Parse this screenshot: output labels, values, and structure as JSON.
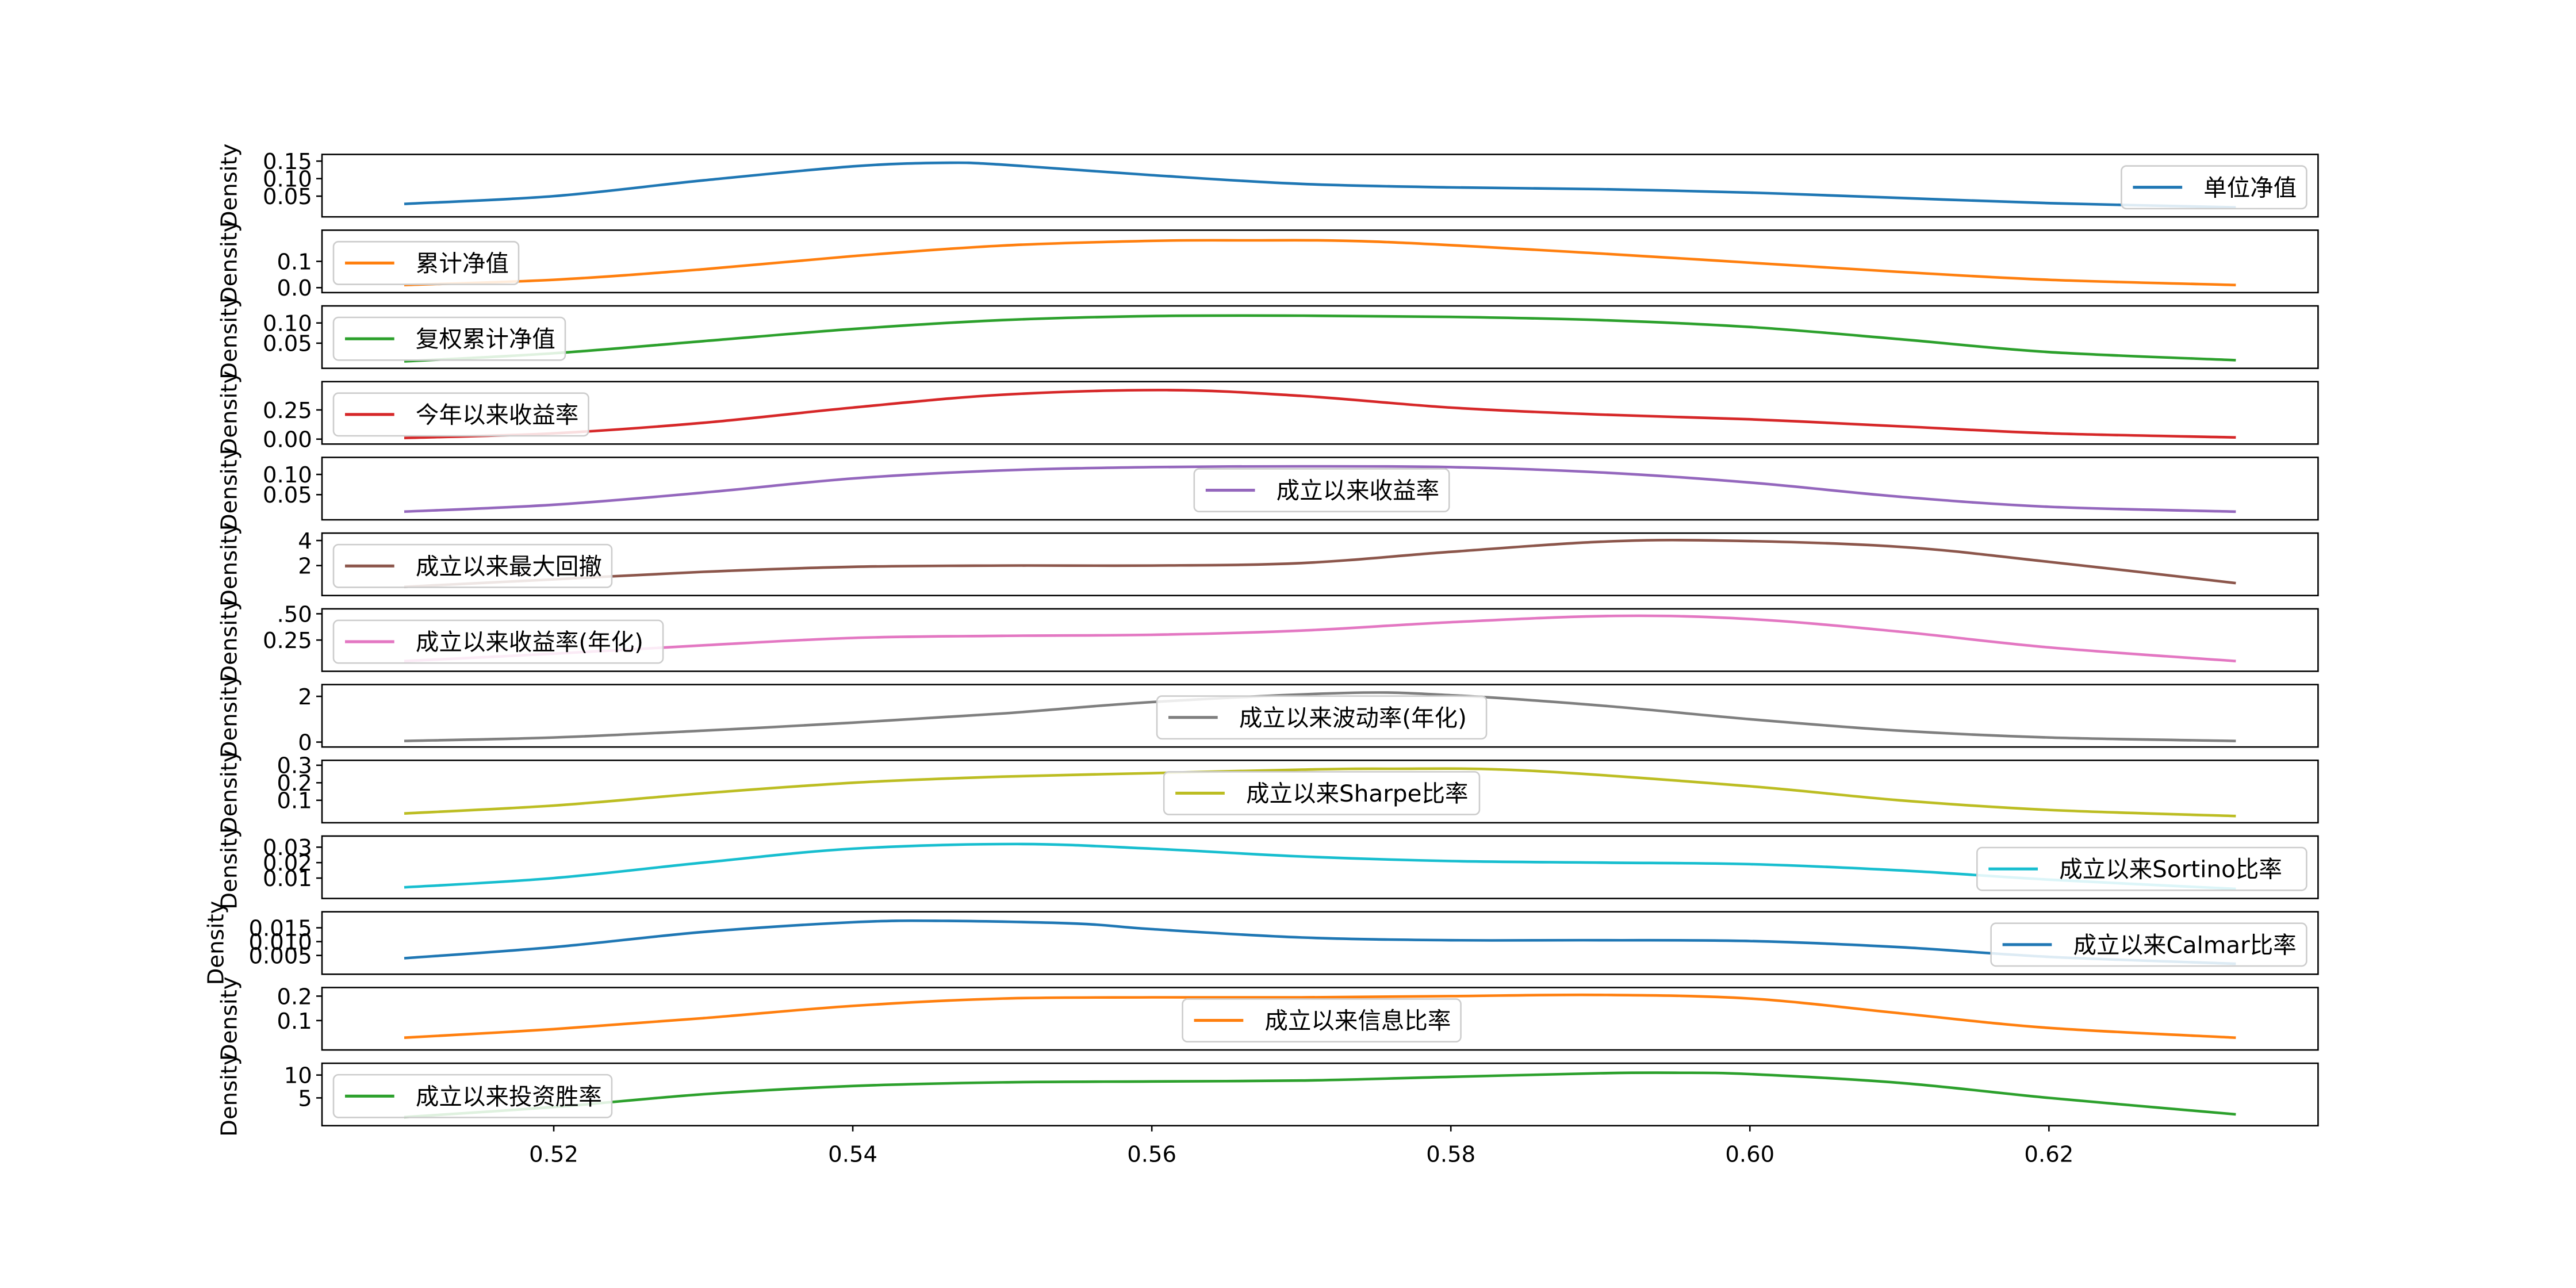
{
  "chart_data": {
    "type": "line",
    "description_kind": "kde-density-stack",
    "x_ticks": [
      0.52,
      0.54,
      0.56,
      0.58,
      0.6,
      0.62
    ],
    "x_tick_labels": [
      "0.52",
      "0.54",
      "0.56",
      "0.58",
      "0.60",
      "0.62"
    ],
    "xlim": [
      0.5045,
      0.638
    ],
    "data_range": [
      0.51,
      0.6325
    ],
    "ylabel": "Density",
    "grid": false,
    "series": [
      {
        "name": "单位净值",
        "color": "#1f77b4",
        "legend": "right",
        "ylim": [
          0.005,
          0.155
        ],
        "yticks": [
          0.05,
          0.1,
          0.15
        ],
        "ytick_labels": [
          "0.05",
          "0.10",
          "0.15"
        ],
        "x": [
          0.51,
          0.52,
          0.53,
          0.54,
          0.546,
          0.55,
          0.56,
          0.57,
          0.58,
          0.59,
          0.6,
          0.61,
          0.62,
          0.6325
        ],
        "y": [
          0.028,
          0.05,
          0.095,
          0.135,
          0.145,
          0.14,
          0.11,
          0.085,
          0.075,
          0.07,
          0.06,
          0.045,
          0.03,
          0.018
        ]
      },
      {
        "name": "累计净值",
        "color": "#ff7f0e",
        "legend": "left",
        "ylim": [
          0,
          0.2
        ],
        "yticks": [
          0.0,
          0.1
        ],
        "ytick_labels": [
          "0.0",
          "0.1"
        ],
        "x": [
          0.51,
          0.52,
          0.53,
          0.54,
          0.55,
          0.56,
          0.566,
          0.575,
          0.59,
          0.6,
          0.61,
          0.62,
          0.6325
        ],
        "y": [
          0.01,
          0.03,
          0.07,
          0.12,
          0.16,
          0.178,
          0.18,
          0.175,
          0.13,
          0.095,
          0.06,
          0.03,
          0.01
        ]
      },
      {
        "name": "复权累计净值",
        "color": "#2ca02c",
        "legend": "left",
        "ylim": [
          0,
          0.13
        ],
        "yticks": [
          0.05,
          0.1
        ],
        "ytick_labels": [
          "0.05",
          "0.10"
        ],
        "x": [
          0.51,
          0.52,
          0.53,
          0.54,
          0.55,
          0.56,
          0.57,
          0.58,
          0.59,
          0.6,
          0.61,
          0.62,
          0.6325
        ],
        "y": [
          0.005,
          0.025,
          0.055,
          0.085,
          0.107,
          0.117,
          0.118,
          0.115,
          0.107,
          0.09,
          0.06,
          0.028,
          0.008
        ]
      },
      {
        "name": "今年以来收益率",
        "color": "#d62728",
        "legend": "left",
        "ylim": [
          0,
          0.45
        ],
        "yticks": [
          0.0,
          0.25
        ],
        "ytick_labels": [
          "0.00",
          "0.25"
        ],
        "x": [
          0.51,
          0.52,
          0.53,
          0.54,
          0.55,
          0.561,
          0.57,
          0.58,
          0.59,
          0.6,
          0.61,
          0.62,
          0.6325
        ],
        "y": [
          0.01,
          0.05,
          0.14,
          0.27,
          0.38,
          0.42,
          0.37,
          0.27,
          0.21,
          0.17,
          0.11,
          0.05,
          0.015
        ]
      },
      {
        "name": "成立以来收益率",
        "color": "#9467bd",
        "legend": "center",
        "ylim": [
          0,
          0.13
        ],
        "yticks": [
          0.05,
          0.1
        ],
        "ytick_labels": [
          "0.05",
          "0.10"
        ],
        "x": [
          0.51,
          0.52,
          0.53,
          0.54,
          0.55,
          0.56,
          0.57,
          0.58,
          0.59,
          0.6,
          0.61,
          0.62,
          0.6325
        ],
        "y": [
          0.008,
          0.025,
          0.055,
          0.09,
          0.11,
          0.118,
          0.12,
          0.118,
          0.105,
          0.08,
          0.045,
          0.02,
          0.008
        ]
      },
      {
        "name": "成立以来最大回撤",
        "color": "#8c564b",
        "legend": "left",
        "ylim": [
          0,
          4.2
        ],
        "yticks": [
          2,
          4
        ],
        "ytick_labels": [
          "2",
          "4"
        ],
        "x": [
          0.51,
          0.52,
          0.53,
          0.54,
          0.55,
          0.56,
          0.57,
          0.58,
          0.59,
          0.598,
          0.61,
          0.62,
          0.6325
        ],
        "y": [
          0.3,
          0.9,
          1.5,
          1.9,
          2.0,
          2.0,
          2.2,
          3.1,
          3.9,
          4.0,
          3.5,
          2.3,
          0.6
        ]
      },
      {
        "name": "成立以来收益率(年化)",
        "color": "#e377c2",
        "legend": "left",
        "ylim": [
          0,
          0.5
        ],
        "yticks": [
          0.25,
          0.5
        ],
        "ytick_labels": [
          "0.25",
          ".50"
        ],
        "x": [
          0.51,
          0.52,
          0.53,
          0.54,
          0.55,
          0.56,
          0.57,
          0.58,
          0.591,
          0.6,
          0.61,
          0.62,
          0.6325
        ],
        "y": [
          0.05,
          0.12,
          0.2,
          0.27,
          0.29,
          0.3,
          0.34,
          0.42,
          0.48,
          0.45,
          0.33,
          0.18,
          0.05
        ]
      },
      {
        "name": "成立以来波动率(年化)",
        "color": "#7f7f7f",
        "legend": "center",
        "ylim": [
          0,
          2.3
        ],
        "yticks": [
          0,
          2
        ],
        "ytick_labels": [
          "0",
          "2"
        ],
        "x": [
          0.51,
          0.52,
          0.53,
          0.54,
          0.55,
          0.56,
          0.573,
          0.58,
          0.59,
          0.6,
          0.61,
          0.62,
          0.6325
        ],
        "y": [
          0.05,
          0.2,
          0.5,
          0.85,
          1.25,
          1.75,
          2.15,
          2.05,
          1.6,
          1.0,
          0.5,
          0.2,
          0.05
        ]
      },
      {
        "name": "成立以来Sharpe比率",
        "color": "#bcbd22",
        "legend": "center",
        "ylim": [
          0,
          0.3
        ],
        "yticks": [
          0.1,
          0.2,
          0.3
        ],
        "ytick_labels": [
          "0.1",
          "0.2",
          "0.3"
        ],
        "x": [
          0.51,
          0.52,
          0.53,
          0.54,
          0.55,
          0.56,
          0.57,
          0.576,
          0.585,
          0.6,
          0.61,
          0.62,
          0.6325
        ],
        "y": [
          0.025,
          0.07,
          0.14,
          0.2,
          0.235,
          0.255,
          0.275,
          0.28,
          0.27,
          0.18,
          0.1,
          0.045,
          0.01
        ]
      },
      {
        "name": "成立以来Sortino比率",
        "color": "#17becf",
        "legend": "right",
        "ylim": [
          0,
          0.034
        ],
        "yticks": [
          0.01,
          0.02,
          0.03
        ],
        "ytick_labels": [
          "0.01",
          "0.02",
          "0.03"
        ],
        "x": [
          0.51,
          0.52,
          0.53,
          0.54,
          0.551,
          0.56,
          0.57,
          0.58,
          0.59,
          0.6,
          0.61,
          0.62,
          0.6325
        ],
        "y": [
          0.004,
          0.01,
          0.02,
          0.029,
          0.032,
          0.029,
          0.024,
          0.021,
          0.02,
          0.019,
          0.015,
          0.009,
          0.003
        ]
      },
      {
        "name": "成立以来Calmar比率",
        "color": "#1f77b4",
        "legend": "right",
        "ylim": [
          0,
          0.019
        ],
        "yticks": [
          0.005,
          0.01,
          0.015
        ],
        "ytick_labels": [
          "0.005",
          "0.010",
          "0.015"
        ],
        "x": [
          0.51,
          0.52,
          0.53,
          0.54,
          0.546,
          0.555,
          0.56,
          0.57,
          0.58,
          0.59,
          0.6,
          0.61,
          0.62,
          0.6325
        ],
        "y": [
          0.004,
          0.008,
          0.0135,
          0.017,
          0.0175,
          0.0165,
          0.0145,
          0.0115,
          0.0105,
          0.0105,
          0.0102,
          0.008,
          0.0045,
          0.002
        ]
      },
      {
        "name": "成立以来信息比率",
        "color": "#ff7f0e",
        "legend": "center",
        "ylim": [
          0,
          0.215
        ],
        "yticks": [
          0.1,
          0.2
        ],
        "ytick_labels": [
          "0.1",
          "0.2"
        ],
        "x": [
          0.51,
          0.52,
          0.53,
          0.54,
          0.55,
          0.56,
          0.57,
          0.58,
          0.59,
          0.6,
          0.61,
          0.62,
          0.6325
        ],
        "y": [
          0.03,
          0.065,
          0.11,
          0.16,
          0.19,
          0.195,
          0.195,
          0.2,
          0.205,
          0.19,
          0.13,
          0.07,
          0.03
        ]
      },
      {
        "name": "成立以来投资胜率",
        "color": "#2ca02c",
        "legend": "left",
        "ylim": [
          0,
          11.5
        ],
        "yticks": [
          5,
          10
        ],
        "ytick_labels": [
          "5",
          "10"
        ],
        "x": [
          0.51,
          0.52,
          0.53,
          0.54,
          0.55,
          0.56,
          0.57,
          0.58,
          0.59,
          0.595,
          0.6,
          0.61,
          0.62,
          0.6325
        ],
        "y": [
          0.8,
          3.0,
          5.8,
          7.6,
          8.4,
          8.6,
          8.8,
          9.6,
          10.4,
          10.5,
          10.2,
          8.3,
          5.0,
          1.4
        ]
      }
    ]
  }
}
